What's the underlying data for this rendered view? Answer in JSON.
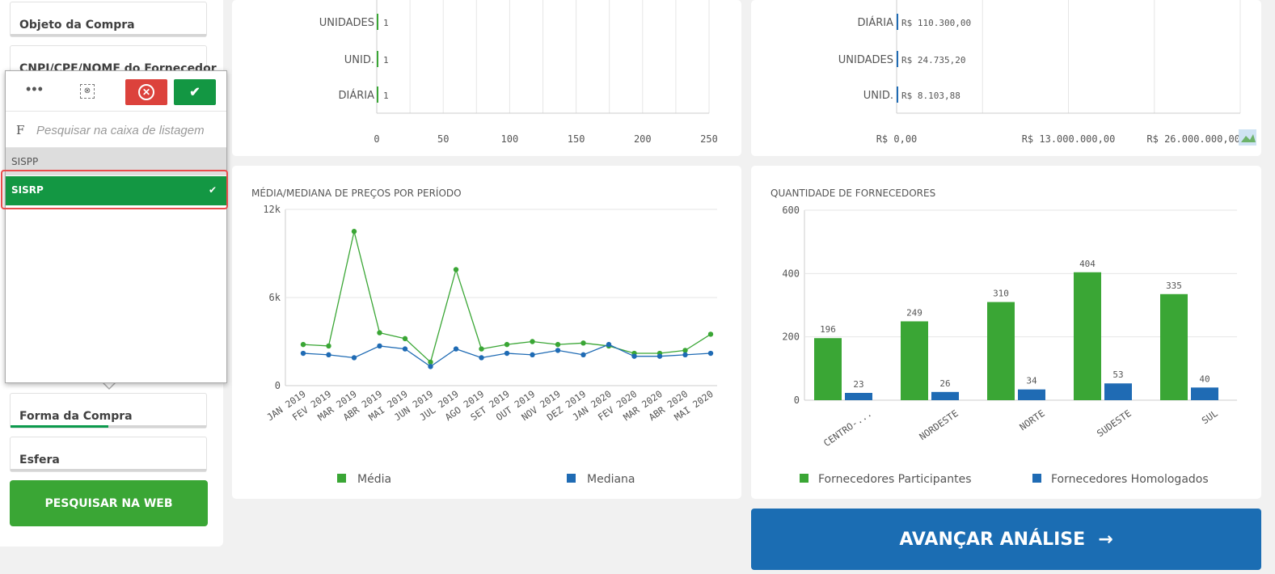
{
  "sidebar": {
    "fields": [
      {
        "label": "Objeto da Compra"
      },
      {
        "label": "CNPJ/CPF/NOME do Fornecedor"
      },
      {
        "label": "Forma da Compra"
      },
      {
        "label": "Esfera"
      }
    ],
    "search_web_label": "PESQUISAR NA WEB"
  },
  "listbox": {
    "more_label": "•••",
    "clear_icon": "⊗",
    "cancel_icon": "✕",
    "confirm_icon": "✔",
    "search_icon": "F",
    "search_placeholder": "Pesquisar na caixa de listagem",
    "items": [
      {
        "label": "SISPP",
        "selected": false
      },
      {
        "label": "SISRP",
        "selected": true
      }
    ],
    "check_icon": "✔"
  },
  "chart_qty_units": {
    "type": "bar",
    "orientation": "horizontal",
    "categories": [
      "UNIDADES",
      "UNID.",
      "DIÁRIA"
    ],
    "values": [
      1,
      1,
      1
    ],
    "value_labels": [
      "1",
      "1",
      "1"
    ],
    "xticks": [
      "0",
      "50",
      "100",
      "150",
      "200",
      "250"
    ],
    "xlim": [
      0,
      250
    ]
  },
  "chart_value_units": {
    "type": "bar",
    "orientation": "horizontal",
    "categories": [
      "DIÁRIA",
      "UNIDADES",
      "UNID."
    ],
    "values": [
      110300,
      24735.2,
      8103.88
    ],
    "value_labels": [
      "R$ 110.300,00",
      "R$ 24.735,20",
      "R$ 8.103,88"
    ],
    "xticks": [
      "R$ 0,00",
      "R$ 13.000.000,00",
      "R$ 26.000.000,00"
    ],
    "xlim": [
      0,
      26000000
    ]
  },
  "chart_data": [
    {
      "type": "line",
      "title": "MÉDIA/MEDIANA DE PREÇOS POR PERÍODO",
      "categories": [
        "JAN 2019",
        "FEV 2019",
        "MAR 2019",
        "ABR 2019",
        "MAI 2019",
        "JUN 2019",
        "JUL 2019",
        "AGO 2019",
        "SET 2019",
        "OUT 2019",
        "NOV 2019",
        "DEZ 2019",
        "JAN 2020",
        "FEV 2020",
        "MAR 2020",
        "ABR 2020",
        "MAI 2020"
      ],
      "yticks": [
        "0",
        "6k",
        "12k"
      ],
      "ylim": [
        0,
        12000
      ],
      "legend_position": "bottom",
      "series": [
        {
          "name": "Média",
          "color": "#3aa635",
          "values": [
            2800,
            2700,
            10500,
            3600,
            3200,
            1600,
            7900,
            2500,
            2800,
            3000,
            2800,
            2900,
            2700,
            2200,
            2200,
            2400,
            3500
          ]
        },
        {
          "name": "Mediana",
          "color": "#1f6bb4",
          "values": [
            2200,
            2100,
            1900,
            2700,
            2500,
            1300,
            2500,
            1900,
            2200,
            2100,
            2400,
            2100,
            2800,
            2000,
            2000,
            2100,
            2200
          ]
        }
      ]
    },
    {
      "type": "bar",
      "title": "QUANTIDADE DE FORNECEDORES",
      "categories": [
        "CENTRO-...",
        "NORDESTE",
        "NORTE",
        "SUDESTE",
        "SUL"
      ],
      "yticks": [
        "0",
        "200",
        "400",
        "600"
      ],
      "ylim": [
        0,
        600
      ],
      "legend_position": "bottom",
      "series": [
        {
          "name": "Fornecedores Participantes",
          "color": "#3aa635",
          "values": [
            196,
            249,
            310,
            404,
            335
          ]
        },
        {
          "name": "Fornecedores Homologados",
          "color": "#1f6bb4",
          "values": [
            23,
            26,
            34,
            53,
            40
          ]
        }
      ]
    }
  ],
  "advance_label": "AVANÇAR ANÁLISE",
  "advance_icon": "→"
}
